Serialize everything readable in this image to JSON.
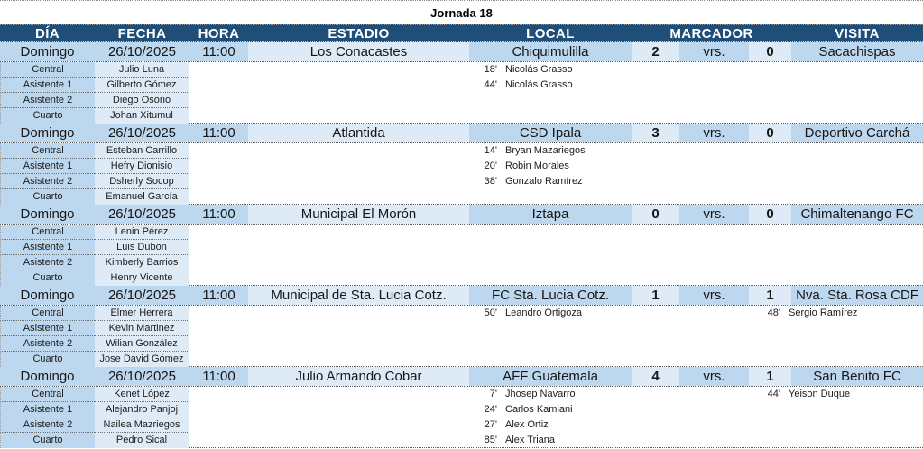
{
  "title": "Jornada 18",
  "columns": {
    "dia": "DÍA",
    "fecha": "FECHA",
    "hora": "HORA",
    "estadio": "ESTADIO",
    "local": "LOCAL",
    "marcador": "MARCADOR",
    "visita": "VISITA"
  },
  "vrs_label": "vrs.",
  "referee_labels": [
    "Central",
    "Asistente 1",
    "Asistente 2",
    "Cuarto"
  ],
  "colors": {
    "header_bg": "#1F4E79",
    "header_text": "#FFFFFF",
    "row_medium_blue": "#BDD7EE",
    "row_light_blue": "#DEEBF7"
  },
  "matches": [
    {
      "dia": "Domingo",
      "fecha": "26/10/2025",
      "hora": "11:00",
      "estadio": "Los Conacastes",
      "local": "Chiquimulilla",
      "marcador_local": "2",
      "marcador_visita": "0",
      "visita": "Sacachispas",
      "arbitros": {
        "central": "Julio Luna",
        "asistente1": "Gilberto Gómez",
        "asistente2": "Diego Osorio",
        "cuarto": "Johan Xitumul"
      },
      "goles_local": [
        {
          "min": "18'",
          "jugador": "Nicolás Grasso"
        },
        {
          "min": "44'",
          "jugador": "Nicolás Grasso"
        }
      ],
      "goles_visita": []
    },
    {
      "dia": "Domingo",
      "fecha": "26/10/2025",
      "hora": "11:00",
      "estadio": "Atlantida",
      "local": "CSD Ipala",
      "marcador_local": "3",
      "marcador_visita": "0",
      "visita": "Deportivo Carchá",
      "arbitros": {
        "central": "Esteban Carrillo",
        "asistente1": "Hefry Dionisio",
        "asistente2": "Dsherly Socop",
        "cuarto": "Emanuel García"
      },
      "goles_local": [
        {
          "min": "14'",
          "jugador": "Bryan Mazariegos"
        },
        {
          "min": "20'",
          "jugador": "Robin Morales"
        },
        {
          "min": "38'",
          "jugador": "Gonzalo Ramírez"
        }
      ],
      "goles_visita": []
    },
    {
      "dia": "Domingo",
      "fecha": "26/10/2025",
      "hora": "11:00",
      "estadio": "Municipal El Morón",
      "local": "Iztapa",
      "marcador_local": "0",
      "marcador_visita": "0",
      "visita": "Chimaltenango FC",
      "arbitros": {
        "central": "Lenin Pérez",
        "asistente1": "Luis Dubon",
        "asistente2": "Kimberly Barrios",
        "cuarto": "Henry Vicente"
      },
      "goles_local": [],
      "goles_visita": []
    },
    {
      "dia": "Domingo",
      "fecha": "26/10/2025",
      "hora": "11:00",
      "estadio": "Municipal de Sta. Lucia Cotz.",
      "local": "FC Sta. Lucia Cotz.",
      "marcador_local": "1",
      "marcador_visita": "1",
      "visita": "Nva. Sta. Rosa CDF",
      "arbitros": {
        "central": "Elmer Herrera",
        "asistente1": "Kevin Martinez",
        "asistente2": "Wilian González",
        "cuarto": "Jose David Gómez"
      },
      "goles_local": [
        {
          "min": "50'",
          "jugador": "Leandro Ortigoza"
        }
      ],
      "goles_visita": [
        {
          "min": "48'",
          "jugador": "Sergio Ramírez"
        }
      ]
    },
    {
      "dia": "Domingo",
      "fecha": "26/10/2025",
      "hora": "11:00",
      "estadio": "Julio Armando Cobar",
      "local": "AFF Guatemala",
      "marcador_local": "4",
      "marcador_visita": "1",
      "visita": "San Benito FC",
      "arbitros": {
        "central": "Kenet López",
        "asistente1": "Alejandro Panjoj",
        "asistente2": "Nailea Mazriegos",
        "cuarto": "Pedro Sical"
      },
      "goles_local": [
        {
          "min": "7'",
          "jugador": "Jhosep Navarro"
        },
        {
          "min": "24'",
          "jugador": "Carlos Kamiani"
        },
        {
          "min": "27'",
          "jugador": "Alex Ortiz"
        },
        {
          "min": "85'",
          "jugador": "Alex Triana"
        }
      ],
      "goles_visita": [
        {
          "min": "44'",
          "jugador": "Yeison Duque"
        }
      ]
    }
  ]
}
